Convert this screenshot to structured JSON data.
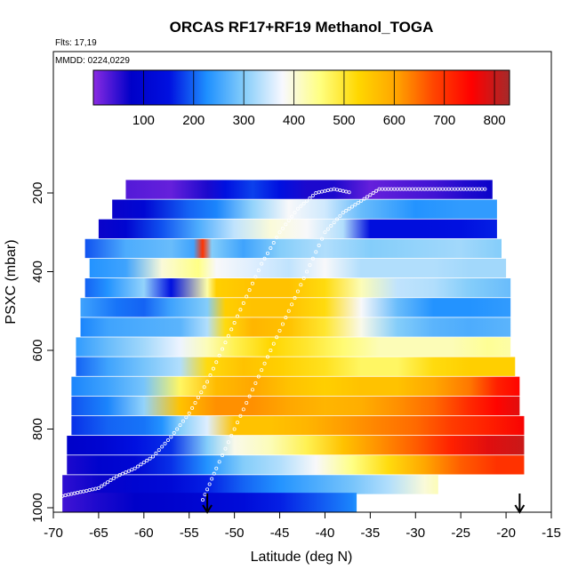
{
  "chart_data": {
    "type": "heatmap",
    "title": "ORCAS RF17+RF19 Methanol_TOGA",
    "flights_note": "Flts: 17,19",
    "dates_note": "MMDD: 0224,0229",
    "xlabel": "Latitude (deg N)",
    "ylabel": "PSXC (mbar)",
    "xlim": [
      -70,
      -15
    ],
    "ylim": [
      1000,
      100
    ],
    "x_ticks": [
      -70,
      -65,
      -60,
      -55,
      -50,
      -45,
      -40,
      -35,
      -30,
      -25,
      -20,
      -15
    ],
    "y_ticks": [
      200,
      400,
      600,
      800,
      1000
    ],
    "colorbar": {
      "range": [
        0,
        830
      ],
      "ticks": [
        100,
        200,
        300,
        400,
        500,
        600,
        700,
        800
      ],
      "palette": [
        "#8a2be2",
        "#0000c8",
        "#0010e0",
        "#1e90ff",
        "#87cefa",
        "#f8f8ff",
        "#ffff80",
        "#ffd700",
        "#ffa500",
        "#ff4500",
        "#ff0000",
        "#a52a2a"
      ]
    },
    "flight_tracks": [
      {
        "lat": [
          -69,
          -67,
          -65,
          -63,
          -61,
          -59,
          -57,
          -55,
          -53,
          -51,
          -49,
          -47,
          -45,
          -43,
          -41,
          -39,
          -37
        ],
        "p": [
          970,
          960,
          950,
          920,
          900,
          870,
          820,
          760,
          680,
          580,
          480,
          380,
          300,
          240,
          200,
          190,
          200
        ]
      },
      {
        "lat": [
          -53.5,
          -52,
          -50,
          -48,
          -46,
          -44,
          -42,
          -40,
          -38,
          -36,
          -34,
          -32,
          -30,
          -28,
          -26,
          -24,
          -22
        ],
        "p": [
          980,
          900,
          800,
          700,
          600,
          500,
          400,
          300,
          250,
          220,
          190,
          190,
          190,
          190,
          190,
          190,
          190
        ]
      }
    ],
    "arrows": [
      {
        "lat": -53
      },
      {
        "lat": -18.5
      }
    ],
    "rows": [
      {
        "p": 190,
        "lat0": -62,
        "lat1": -21.5,
        "stops": [
          [
            -62,
            30
          ],
          [
            -57,
            20
          ],
          [
            -53,
            60
          ],
          [
            -51,
            150
          ],
          [
            -48,
            180
          ],
          [
            -45,
            150
          ],
          [
            -42,
            60
          ],
          [
            -39,
            60
          ],
          [
            -35,
            20
          ],
          [
            -28,
            40
          ],
          [
            -24,
            60
          ],
          [
            -21.5,
            70
          ]
        ]
      },
      {
        "p": 240,
        "lat0": -63.5,
        "lat1": -21,
        "stops": [
          [
            -63.5,
            70
          ],
          [
            -60,
            110
          ],
          [
            -55,
            200
          ],
          [
            -52,
            220
          ],
          [
            -48,
            310
          ],
          [
            -44,
            380
          ],
          [
            -40,
            350
          ],
          [
            -36,
            280
          ],
          [
            -30,
            230
          ],
          [
            -25,
            240
          ],
          [
            -21,
            240
          ]
        ]
      },
      {
        "p": 290,
        "lat0": -65,
        "lat1": -21,
        "stops": [
          [
            -65,
            70
          ],
          [
            -62,
            100
          ],
          [
            -58,
            190
          ],
          [
            -54,
            260
          ],
          [
            -50,
            340
          ],
          [
            -46,
            400
          ],
          [
            -42,
            380
          ],
          [
            -38,
            330
          ],
          [
            -35,
            140
          ],
          [
            -30,
            140
          ],
          [
            -25,
            150
          ],
          [
            -21,
            160
          ]
        ]
      },
      {
        "p": 340,
        "lat0": -66.5,
        "lat1": -20.5,
        "stops": [
          [
            -66.5,
            190
          ],
          [
            -62,
            260
          ],
          [
            -57,
            280
          ],
          [
            -54.5,
            250
          ],
          [
            -53.5,
            700
          ],
          [
            -52.5,
            300
          ],
          [
            -49,
            250
          ],
          [
            -45,
            300
          ],
          [
            -40,
            330
          ],
          [
            -35,
            300
          ],
          [
            -30,
            310
          ],
          [
            -25,
            320
          ],
          [
            -20.5,
            300
          ]
        ]
      },
      {
        "p": 390,
        "lat0": -66,
        "lat1": -20,
        "stops": [
          [
            -66,
            230
          ],
          [
            -62,
            250
          ],
          [
            -58,
            400
          ],
          [
            -54,
            450
          ],
          [
            -52,
            380
          ],
          [
            -48,
            360
          ],
          [
            -44,
            340
          ],
          [
            -40,
            380
          ],
          [
            -36,
            330
          ],
          [
            -32,
            330
          ],
          [
            -28,
            330
          ],
          [
            -24,
            320
          ],
          [
            -20,
            320
          ]
        ]
      },
      {
        "p": 440,
        "lat0": -66.5,
        "lat1": -19.5,
        "stops": [
          [
            -66.5,
            200
          ],
          [
            -64,
            230
          ],
          [
            -60,
            310
          ],
          [
            -57,
            150
          ],
          [
            -53,
            430
          ],
          [
            -52,
            540
          ],
          [
            -48,
            560
          ],
          [
            -44,
            560
          ],
          [
            -40,
            520
          ],
          [
            -36,
            420
          ],
          [
            -32,
            340
          ],
          [
            -28,
            330
          ],
          [
            -24,
            300
          ],
          [
            -19.5,
            280
          ]
        ]
      },
      {
        "p": 490,
        "lat0": -67,
        "lat1": -19.5,
        "stops": [
          [
            -67,
            250
          ],
          [
            -63,
            210
          ],
          [
            -60,
            200
          ],
          [
            -57,
            250
          ],
          [
            -53,
            300
          ],
          [
            -51,
            540
          ],
          [
            -48,
            560
          ],
          [
            -44,
            560
          ],
          [
            -40,
            520
          ],
          [
            -36,
            380
          ],
          [
            -32,
            280
          ],
          [
            -28,
            230
          ],
          [
            -24,
            230
          ],
          [
            -19.5,
            240
          ]
        ]
      },
      {
        "p": 540,
        "lat0": -67,
        "lat1": -19.5,
        "stops": [
          [
            -67,
            220
          ],
          [
            -64,
            250
          ],
          [
            -60,
            260
          ],
          [
            -56,
            270
          ],
          [
            -53,
            330
          ],
          [
            -51,
            520
          ],
          [
            -48,
            580
          ],
          [
            -44,
            560
          ],
          [
            -40,
            500
          ],
          [
            -36,
            390
          ],
          [
            -32,
            300
          ],
          [
            -28,
            270
          ],
          [
            -24,
            260
          ],
          [
            -19.5,
            270
          ]
        ]
      },
      {
        "p": 590,
        "lat0": -67.5,
        "lat1": -19.5,
        "stops": [
          [
            -67.5,
            240
          ],
          [
            -64,
            280
          ],
          [
            -60,
            320
          ],
          [
            -56,
            370
          ],
          [
            -53,
            420
          ],
          [
            -50,
            480
          ],
          [
            -46,
            530
          ],
          [
            -42,
            500
          ],
          [
            -38,
            460
          ],
          [
            -34,
            420
          ],
          [
            -30,
            420
          ],
          [
            -26,
            420
          ],
          [
            -22,
            440
          ],
          [
            -19.5,
            430
          ]
        ]
      },
      {
        "p": 640,
        "lat0": -67.5,
        "lat1": -19,
        "stops": [
          [
            -67.5,
            200
          ],
          [
            -64,
            250
          ],
          [
            -60,
            290
          ],
          [
            -56,
            330
          ],
          [
            -53,
            520
          ],
          [
            -49,
            560
          ],
          [
            -45,
            540
          ],
          [
            -40,
            510
          ],
          [
            -36,
            470
          ],
          [
            -32,
            470
          ],
          [
            -28,
            520
          ],
          [
            -24,
            540
          ],
          [
            -19,
            540
          ]
        ]
      },
      {
        "p": 690,
        "lat0": -68,
        "lat1": -18.5,
        "stops": [
          [
            -68,
            220
          ],
          [
            -64,
            250
          ],
          [
            -60,
            290
          ],
          [
            -56,
            470
          ],
          [
            -52,
            570
          ],
          [
            -48,
            600
          ],
          [
            -44,
            560
          ],
          [
            -40,
            540
          ],
          [
            -36,
            560
          ],
          [
            -32,
            560
          ],
          [
            -28,
            600
          ],
          [
            -24,
            640
          ],
          [
            -21,
            720
          ],
          [
            -18.5,
            750
          ]
        ]
      },
      {
        "p": 740,
        "lat0": -68,
        "lat1": -18.5,
        "stops": [
          [
            -68,
            190
          ],
          [
            -64,
            220
          ],
          [
            -60,
            310
          ],
          [
            -56,
            560
          ],
          [
            -52,
            620
          ],
          [
            -48,
            620
          ],
          [
            -44,
            600
          ],
          [
            -40,
            580
          ],
          [
            -36,
            590
          ],
          [
            -32,
            620
          ],
          [
            -28,
            650
          ],
          [
            -24,
            710
          ],
          [
            -21,
            750
          ],
          [
            -18.5,
            780
          ]
        ]
      },
      {
        "p": 790,
        "lat0": -68,
        "lat1": -18,
        "stops": [
          [
            -68,
            170
          ],
          [
            -64,
            200
          ],
          [
            -60,
            210
          ],
          [
            -58,
            230
          ],
          [
            -56,
            300
          ],
          [
            -53,
            360
          ],
          [
            -50,
            560
          ],
          [
            -46,
            560
          ],
          [
            -42,
            580
          ],
          [
            -38,
            610
          ],
          [
            -34,
            630
          ],
          [
            -30,
            650
          ],
          [
            -26,
            690
          ],
          [
            -22,
            720
          ],
          [
            -18,
            760
          ]
        ]
      },
      {
        "p": 840,
        "lat0": -68.5,
        "lat1": -18,
        "stops": [
          [
            -68.5,
            80
          ],
          [
            -65,
            100
          ],
          [
            -61,
            150
          ],
          [
            -57,
            170
          ],
          [
            -53,
            300
          ],
          [
            -50,
            390
          ],
          [
            -46,
            420
          ],
          [
            -42,
            480
          ],
          [
            -38,
            560
          ],
          [
            -34,
            620
          ],
          [
            -30,
            660
          ],
          [
            -26,
            720
          ],
          [
            -22,
            780
          ],
          [
            -18,
            800
          ]
        ]
      },
      {
        "p": 890,
        "lat0": -68.5,
        "lat1": -18,
        "stops": [
          [
            -68.5,
            60
          ],
          [
            -65,
            90
          ],
          [
            -61,
            110
          ],
          [
            -57,
            170
          ],
          [
            -53,
            230
          ],
          [
            -49,
            300
          ],
          [
            -45,
            330
          ],
          [
            -41,
            380
          ],
          [
            -37,
            450
          ],
          [
            -33,
            520
          ],
          [
            -29,
            600
          ],
          [
            -25,
            660
          ],
          [
            -21,
            700
          ],
          [
            -18,
            700
          ]
        ]
      },
      {
        "p": 940,
        "lat0": -69,
        "lat1": -27.5,
        "stops": [
          [
            -69,
            50
          ],
          [
            -65,
            70
          ],
          [
            -61,
            100
          ],
          [
            -57,
            120
          ],
          [
            -53,
            160
          ],
          [
            -49,
            200
          ],
          [
            -45,
            230
          ],
          [
            -41,
            260
          ],
          [
            -37,
            290
          ],
          [
            -33,
            330
          ],
          [
            -29,
            400
          ],
          [
            -27.5,
            420
          ]
        ]
      },
      {
        "p": 985,
        "lat0": -69,
        "lat1": -36.5,
        "stops": [
          [
            -69,
            40
          ],
          [
            -65,
            60
          ],
          [
            -61,
            80
          ],
          [
            -57,
            90
          ],
          [
            -53,
            110
          ],
          [
            -49,
            130
          ],
          [
            -45,
            160
          ],
          [
            -41,
            190
          ],
          [
            -37,
            220
          ],
          [
            -36.5,
            230
          ]
        ]
      }
    ]
  }
}
